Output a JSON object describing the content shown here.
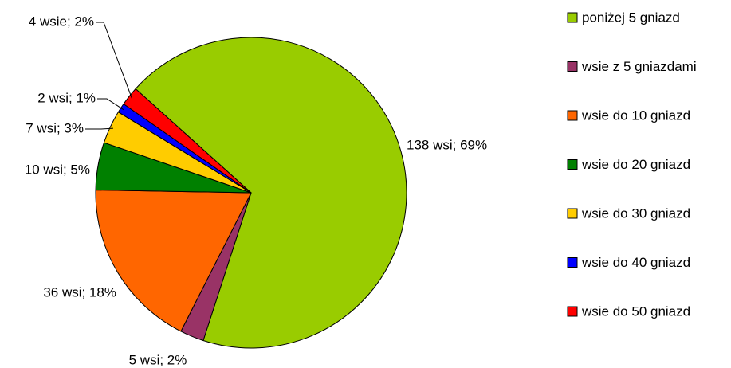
{
  "chart_data": {
    "type": "pie",
    "categories": [
      "poniżej 5 gniazd",
      "wsie z 5 gniazdami",
      "wsie do 10 gniazd",
      "wsie do 20 gniazd",
      "wsie do 30 gniazd",
      "wsie do 40 gniazd",
      "wsie do 50 gniazd"
    ],
    "values": [
      138,
      5,
      36,
      10,
      7,
      2,
      4
    ],
    "value_labels": [
      "138 wsi; 69%",
      "5 wsi; 2%",
      "36 wsi; 18%",
      "10 wsi; 5%",
      "7 wsi; 3%",
      "2 wsi; 1%",
      "4 wsie; 2%"
    ],
    "colors": [
      "#99cc00",
      "#993366",
      "#ff6600",
      "#008000",
      "#ffcc00",
      "#0000ff",
      "#ff0000"
    ],
    "legend": "right"
  }
}
